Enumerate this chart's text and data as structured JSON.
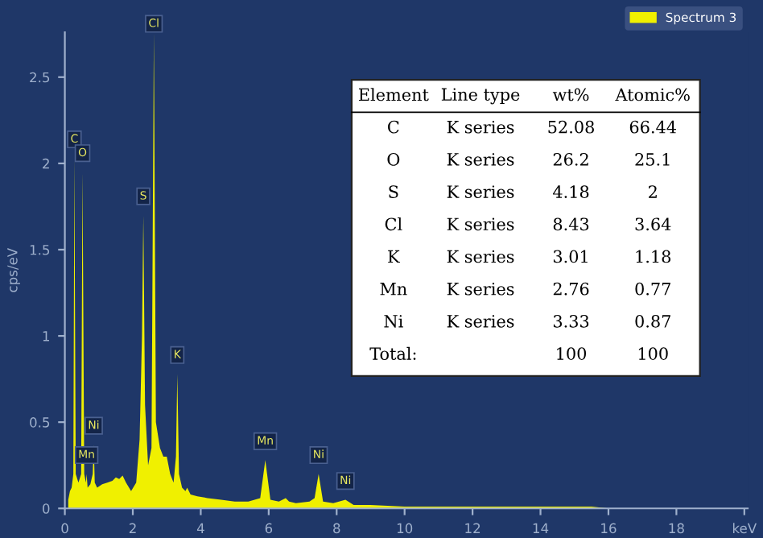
{
  "chart_data": {
    "type": "area",
    "ylabel": "cps/eV",
    "legend": "top right",
    "grid": false,
    "xlim": [
      0,
      20.1
    ],
    "ylim": [
      0,
      2.76
    ],
    "xticks": [
      0,
      2,
      4,
      6,
      8,
      10,
      12,
      14,
      16,
      18,
      {
        "value": 20,
        "label": "keV"
      }
    ],
    "yticks": [
      0,
      0.5,
      1,
      1.5,
      2,
      2.5
    ],
    "series": [
      {
        "name": "Spectrum 3",
        "color": "#f0f000",
        "x": [
          0.1,
          0.15,
          0.2,
          0.25,
          0.28,
          0.32,
          0.4,
          0.48,
          0.52,
          0.57,
          0.62,
          0.64,
          0.67,
          0.75,
          0.82,
          0.85,
          0.88,
          0.95,
          1.1,
          1.25,
          1.4,
          1.5,
          1.6,
          1.7,
          1.8,
          1.95,
          2.1,
          2.2,
          2.27,
          2.31,
          2.36,
          2.45,
          2.55,
          2.62,
          2.68,
          2.8,
          2.9,
          3.0,
          3.1,
          3.2,
          3.27,
          3.31,
          3.36,
          3.45,
          3.55,
          3.6,
          3.7,
          3.9,
          4.2,
          4.6,
          5.0,
          5.4,
          5.75,
          5.9,
          6.05,
          6.3,
          6.5,
          6.6,
          6.8,
          7.2,
          7.35,
          7.47,
          7.6,
          7.9,
          8.26,
          8.5,
          9,
          10,
          11,
          12,
          13,
          14,
          15,
          15.3,
          15.5,
          16,
          17,
          18,
          19,
          20
        ],
        "values": [
          0.05,
          0.1,
          0.12,
          0.2,
          2.03,
          0.2,
          0.15,
          0.2,
          1.95,
          0.2,
          0.15,
          0.2,
          0.12,
          0.14,
          0.2,
          0.37,
          0.15,
          0.12,
          0.14,
          0.15,
          0.16,
          0.18,
          0.17,
          0.19,
          0.15,
          0.1,
          0.15,
          0.4,
          1.0,
          1.7,
          0.6,
          0.25,
          0.35,
          2.76,
          0.5,
          0.35,
          0.3,
          0.3,
          0.2,
          0.15,
          0.3,
          0.78,
          0.2,
          0.12,
          0.1,
          0.12,
          0.08,
          0.07,
          0.06,
          0.05,
          0.04,
          0.04,
          0.06,
          0.28,
          0.05,
          0.04,
          0.06,
          0.04,
          0.03,
          0.04,
          0.06,
          0.2,
          0.04,
          0.03,
          0.05,
          0.02,
          0.02,
          0.01,
          0.01,
          0.01,
          0.01,
          0.01,
          0.01,
          0.01,
          0.01,
          0,
          0,
          0,
          0,
          0
        ]
      }
    ],
    "annotations": [
      {
        "text": "C",
        "x": 0.28,
        "y": 2.03
      },
      {
        "text": "O",
        "x": 0.52,
        "y": 1.95
      },
      {
        "text": "S",
        "x": 2.31,
        "y": 1.7
      },
      {
        "text": "Cl",
        "x": 2.62,
        "y": 2.7
      },
      {
        "text": "K",
        "x": 3.31,
        "y": 0.78
      },
      {
        "text": "Ni",
        "x": 0.85,
        "y": 0.37
      },
      {
        "text": "Mn",
        "x": 0.64,
        "y": 0.2
      },
      {
        "text": "Mn",
        "x": 5.9,
        "y": 0.28
      },
      {
        "text": "Ni",
        "x": 7.47,
        "y": 0.2
      },
      {
        "text": "Ni",
        "x": 8.26,
        "y": 0.05
      },
      "Element",
      "Line type",
      "wt%",
      "Atomic%",
      "C",
      "K series",
      "52.08",
      "66.44",
      "O",
      "K series",
      "26.2",
      "25.1",
      "S",
      "K series",
      "4.18",
      "2",
      "Cl",
      "K series",
      "8.43",
      "3.64",
      "K",
      "K series",
      "3.01",
      "1.18",
      "Mn",
      "K series",
      "2.76",
      "0.77",
      "Ni",
      "K series",
      "3.33",
      "0.87",
      "Total:",
      "100",
      "100"
    ]
  }
}
